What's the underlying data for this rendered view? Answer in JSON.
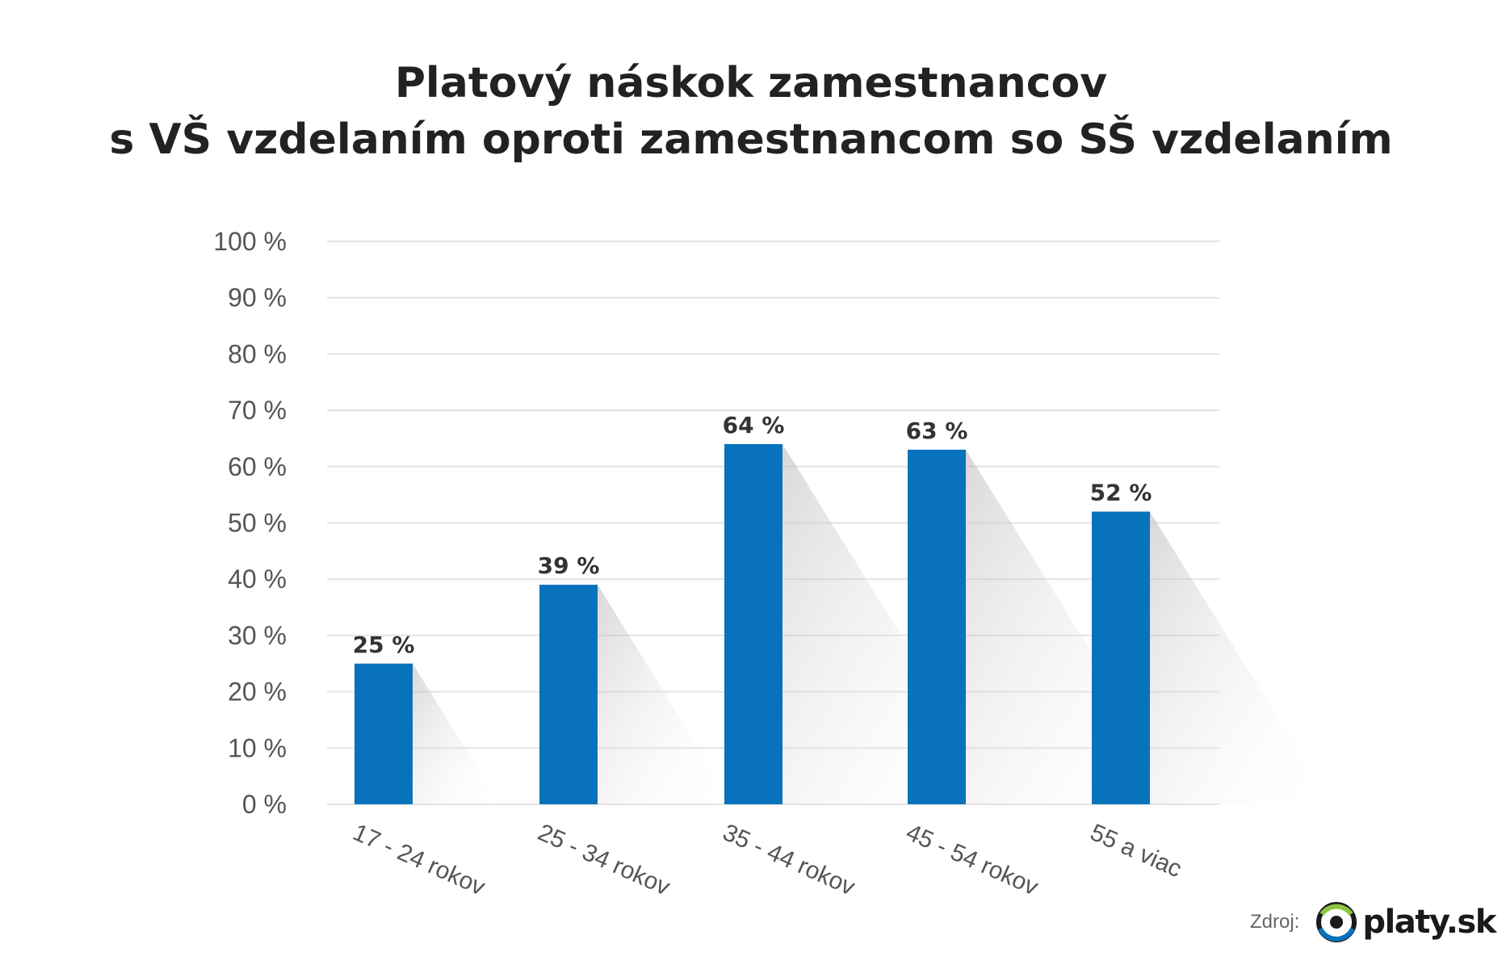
{
  "chart_data": {
    "type": "bar",
    "title_lines": [
      "Platový náskok zamestnancov",
      "s VŠ vzdelaním oproti zamestnancom so SŠ vzdelaním"
    ],
    "categories": [
      "17 - 24 rokov",
      "25 - 34 rokov",
      "35 - 44 rokov",
      "45 - 54 rokov",
      "55 a viac"
    ],
    "values": [
      25,
      39,
      64,
      63,
      52
    ],
    "value_labels": [
      "25 %",
      "39 %",
      "64 %",
      "63 %",
      "52 %"
    ],
    "ylim": [
      0,
      100
    ],
    "y_ticks": [
      0,
      10,
      20,
      30,
      40,
      50,
      60,
      70,
      80,
      90,
      100
    ],
    "y_tick_labels": [
      "0 %",
      "10 %",
      "20 %",
      "30 %",
      "40 %",
      "50 %",
      "60 %",
      "70 %",
      "80 %",
      "90 %",
      "100 %"
    ],
    "grid": true,
    "bar_color": "#0873BC",
    "grid_color": "#E3E3E3",
    "xlabel": "",
    "ylabel": ""
  },
  "source": {
    "label": "Zdroj:",
    "brand": "platy.sk",
    "logo_icon": "eye-logo-icon",
    "logo_colors": {
      "dark": "#1a1a1a",
      "green": "#8cc63f",
      "blue": "#0873BC"
    }
  }
}
